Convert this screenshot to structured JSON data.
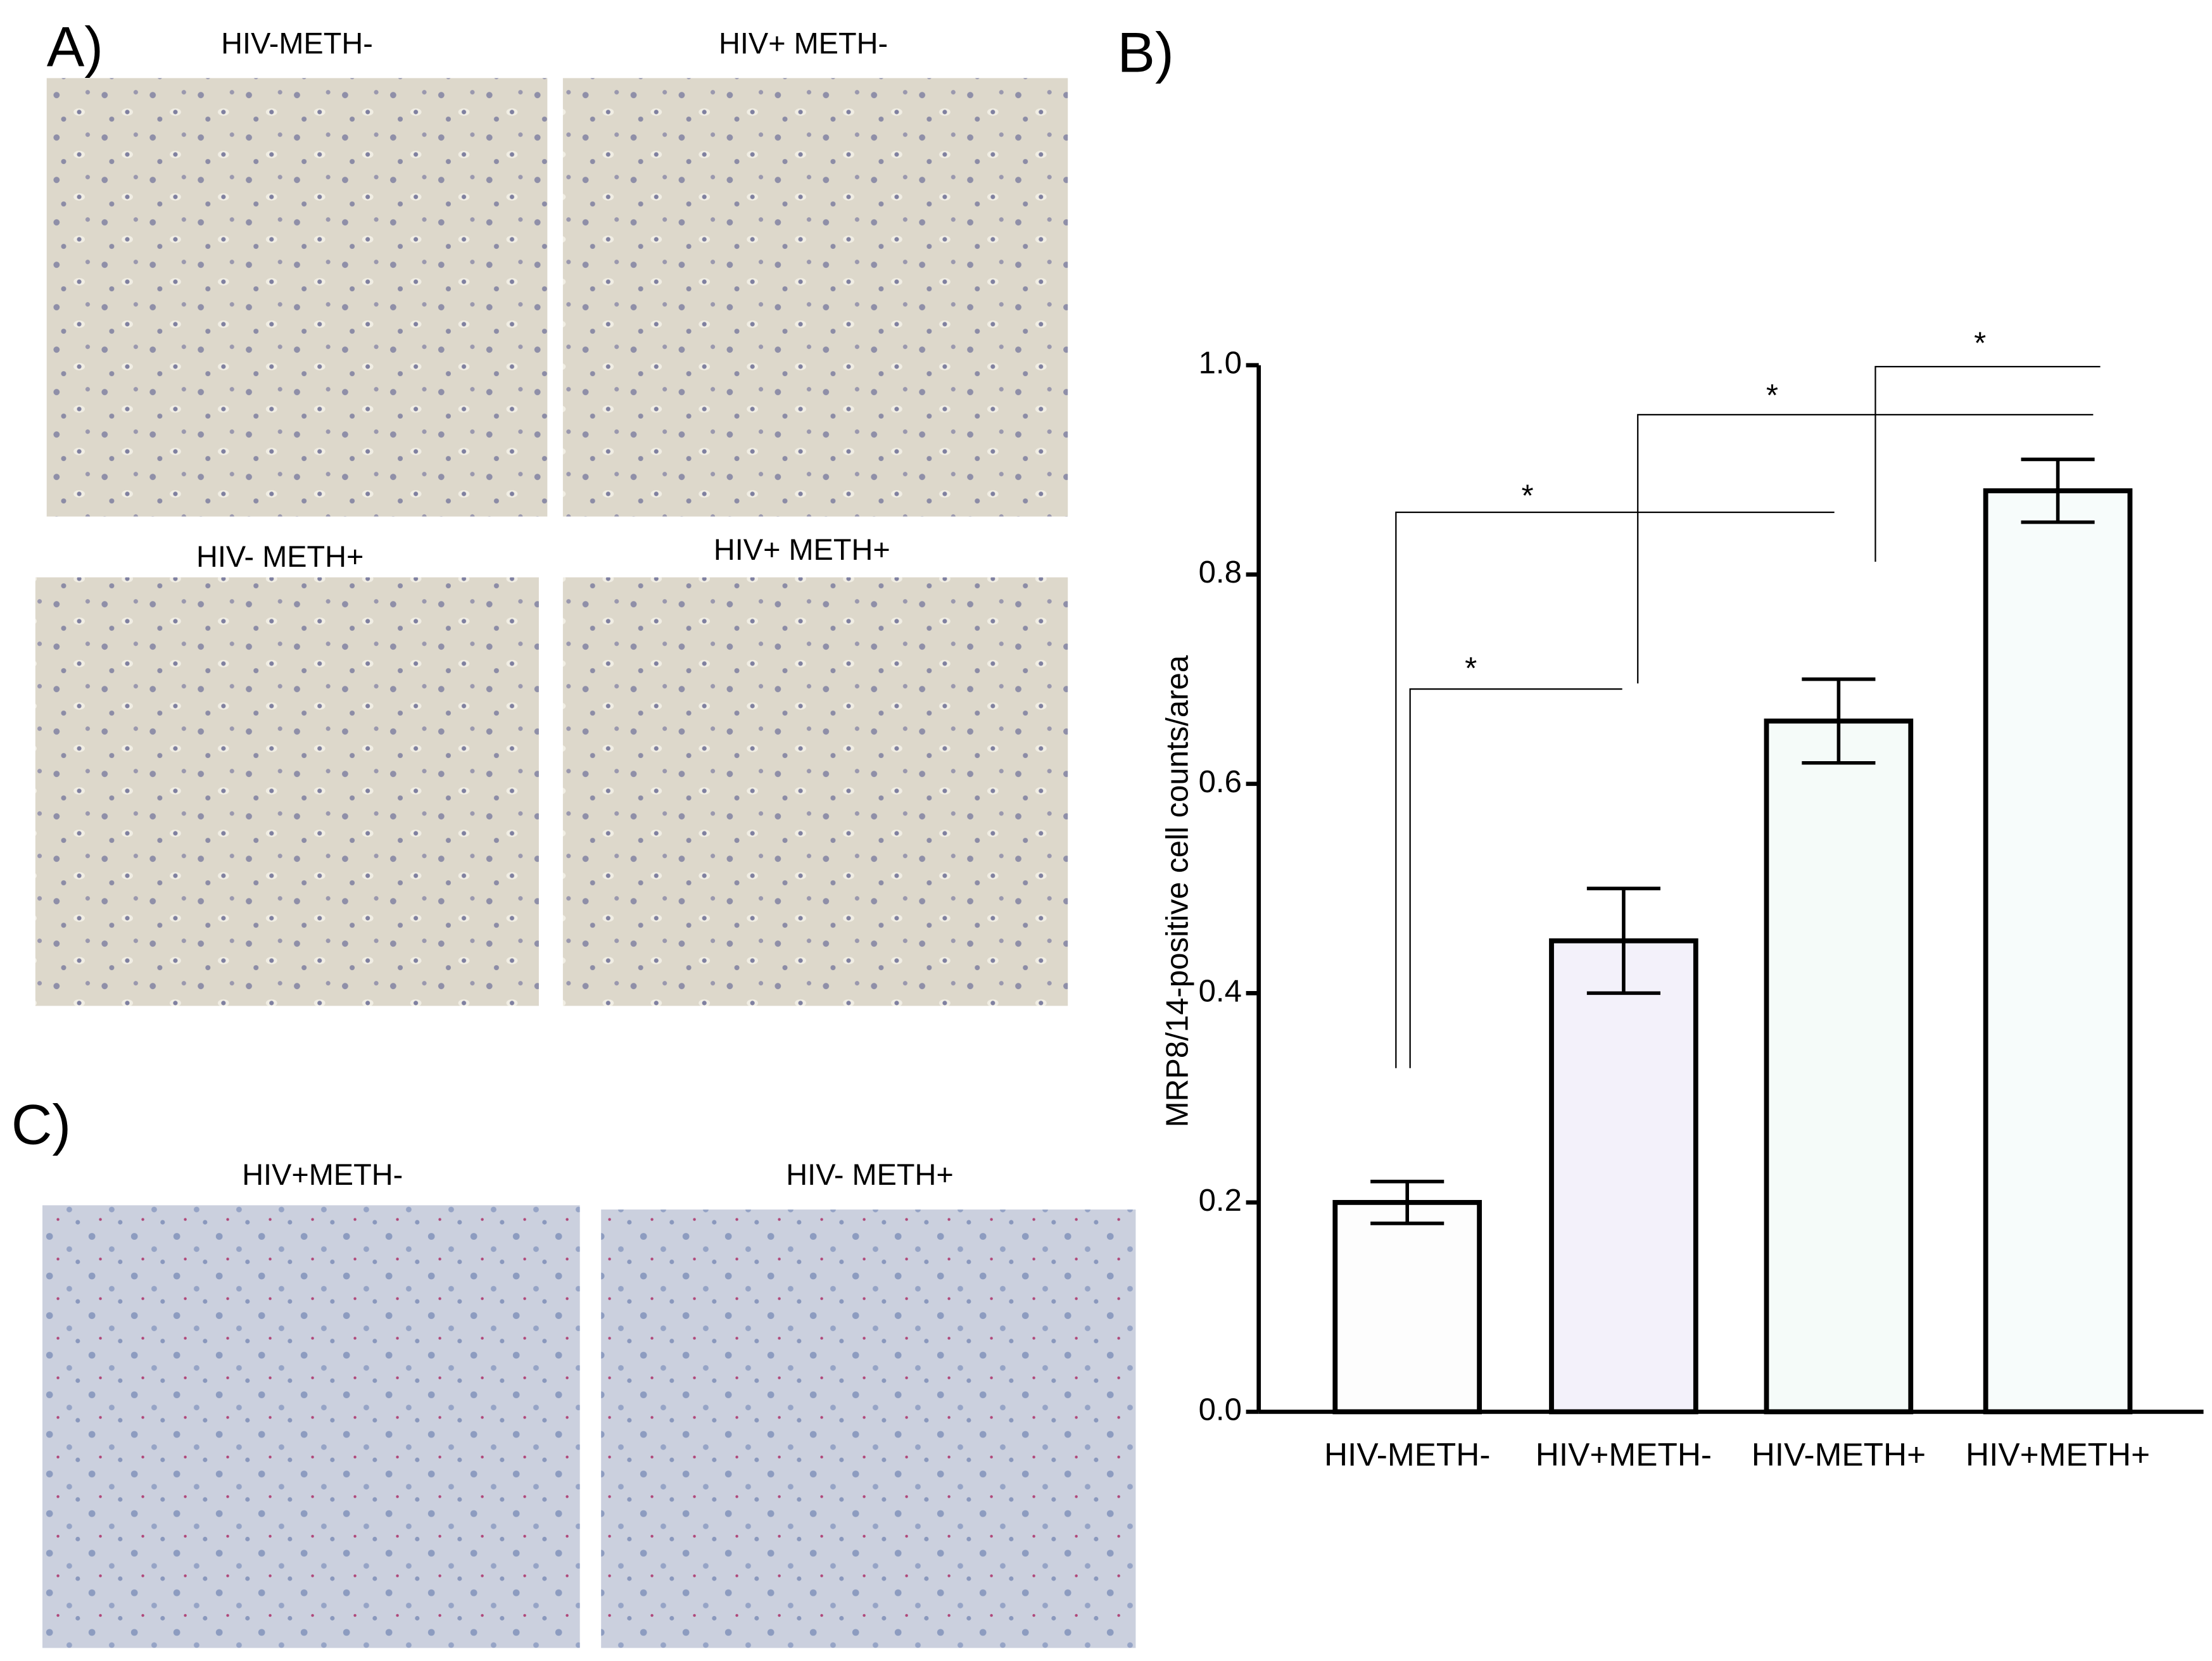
{
  "panels": {
    "a": {
      "label": "A)",
      "images": [
        {
          "caption": "HIV-METH-"
        },
        {
          "caption": "HIV+ METH-"
        },
        {
          "caption": "HIV- METH+"
        },
        {
          "caption": "HIV+ METH+"
        }
      ]
    },
    "c": {
      "label": "C)",
      "images": [
        {
          "caption": "HIV+METH-"
        },
        {
          "caption": "HIV- METH+"
        }
      ]
    }
  },
  "chart_data": {
    "type": "bar",
    "label": "B)",
    "y_label": "MRP8/14-positive cell counts/area",
    "categories": [
      "HIV-METH-",
      "HIV+METH-",
      "HIV-METH+",
      "HIV+METH+"
    ],
    "values": [
      0.2,
      0.45,
      0.66,
      0.88
    ],
    "errors": [
      0.02,
      0.05,
      0.04,
      0.03
    ],
    "colors": [
      "#fdfdfd",
      "#f3f1fa",
      "#f5fbf9",
      "#f7fcfb"
    ],
    "ylim": [
      0,
      1.0
    ],
    "yticks": [
      {
        "value": 0,
        "label": "0.0"
      },
      {
        "value": 0.2,
        "label": "0.2"
      },
      {
        "value": 0.4,
        "label": "0.4"
      },
      {
        "value": 0.6,
        "label": "0.6"
      },
      {
        "value": 0.8,
        "label": "0.8"
      },
      {
        "value": 1.0,
        "label": "1.0"
      }
    ],
    "annotations": [
      {
        "text": "*"
      },
      {
        "text": "*"
      },
      {
        "text": "*"
      },
      {
        "text": "*"
      }
    ]
  }
}
